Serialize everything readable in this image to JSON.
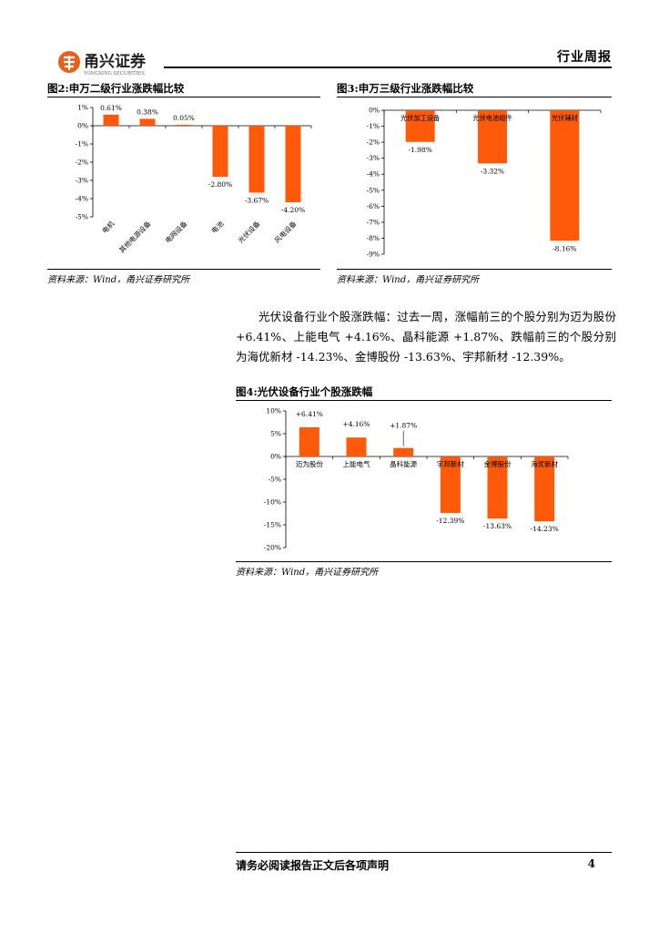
{
  "header": {
    "logo_text": "甬兴证券",
    "logo_subtext": "YONGXING SECURITIES",
    "title": "行业周报"
  },
  "colors": {
    "bar": "#FF5A09",
    "logo": "#E8601C"
  },
  "figures": {
    "fig2": {
      "title": "图2:申万二级行业涨跌幅比较",
      "source": "资料来源：Wind，甬兴证券研究所"
    },
    "fig3": {
      "title": "图3:申万三级行业涨跌幅比较",
      "source": "资料来源：Wind，甬兴证券研究所"
    },
    "fig4": {
      "title": "图4:光伏设备行业个股涨跌幅",
      "source": "资料来源：Wind，甬兴证券研究所"
    }
  },
  "body_text": "光伏设备行业个股涨跌幅：过去一周，涨幅前三的个股分别为迈为股份 +6.41%、上能电气 +4.16%、晶科能源 +1.87%、跌幅前三的个股分别为海优新材 -14.23%、金博股份 -13.63%、宇邦新材 -12.39%。",
  "footer": {
    "text": "请务必阅读报告正文后各项声明",
    "page_number": "4"
  },
  "chart_data": [
    {
      "id": "fig2",
      "type": "bar",
      "categories": [
        "电机",
        "其他电源设备",
        "电网设备",
        "电池",
        "光伏设备",
        "风电设备"
      ],
      "values": [
        0.61,
        0.38,
        0.05,
        -2.8,
        -3.67,
        -4.2
      ],
      "data_labels": [
        "0.61%",
        "0.38%",
        "0.05%",
        "-2.80%",
        "-3.67%",
        "-4.20%"
      ],
      "yticks": [
        "1%",
        "0%",
        "-1%",
        "-2%",
        "-3%",
        "-4%",
        "-5%"
      ],
      "ylim": [
        -5,
        1
      ],
      "category_axis": "rotated-below"
    },
    {
      "id": "fig3",
      "type": "bar",
      "categories": [
        "光伏加工设备",
        "光伏电池组件",
        "光伏辅材"
      ],
      "values": [
        -1.98,
        -3.32,
        -8.16
      ],
      "data_labels": [
        "-1.98%",
        "-3.32%",
        "-8.16%"
      ],
      "yticks": [
        "0%",
        "-1%",
        "-2%",
        "-3%",
        "-4%",
        "-5%",
        "-6%",
        "-7%",
        "-8%",
        "-9%"
      ],
      "ylim": [
        -9,
        0
      ],
      "category_axis": "at-zero"
    },
    {
      "id": "fig4",
      "type": "bar",
      "categories": [
        "迈为股份",
        "上能电气",
        "晶科能源",
        "宇邦新材",
        "金博股份",
        "海优新材"
      ],
      "values": [
        6.41,
        4.16,
        1.87,
        -12.39,
        -13.63,
        -14.23
      ],
      "data_labels": [
        "+6.41%",
        "+4.16%",
        "+1.87%",
        "-12.39%",
        "-13.63%",
        "-14.23%"
      ],
      "yticks": [
        "10%",
        "5%",
        "0%",
        "-5%",
        "-10%",
        "-15%",
        "-20%"
      ],
      "ylim": [
        -20,
        10
      ],
      "category_axis": "at-zero"
    }
  ]
}
